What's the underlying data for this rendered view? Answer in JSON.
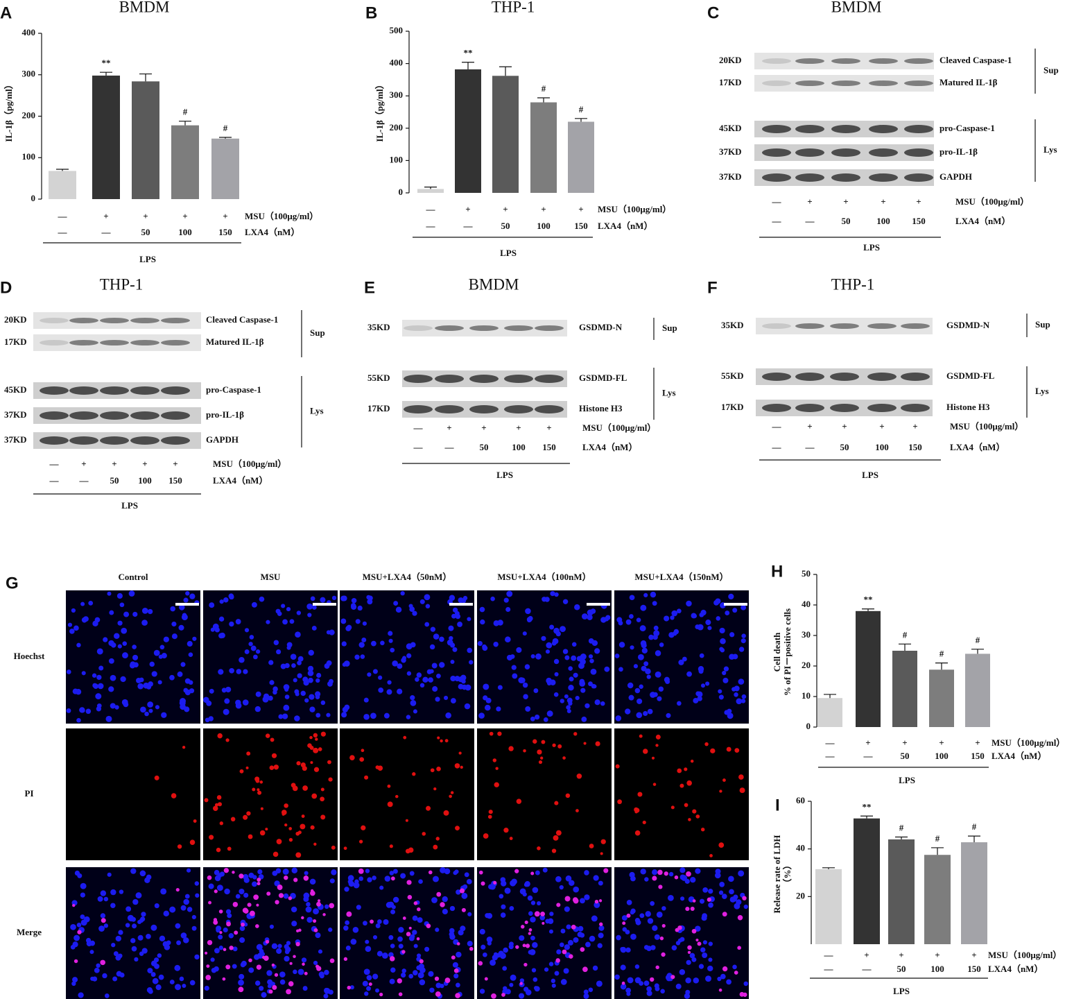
{
  "chart_data": [
    {
      "type": "bar",
      "panel": "A",
      "title": "BMDM",
      "y_label": [
        "IL-1β（pg/ml）"
      ],
      "values": [
        68,
        298,
        284,
        178,
        146
      ],
      "errors": [
        4,
        8,
        18,
        10,
        3
      ],
      "markers": [
        null,
        "**",
        null,
        "#",
        "#"
      ],
      "colors": [
        "#d3d3d3",
        "#333333",
        "#5a5a5a",
        "#7d7d7d",
        "#a3a3a8"
      ],
      "ylim": [
        0,
        400
      ],
      "yticks": [
        0,
        100,
        200,
        300,
        400
      ],
      "conditions": [
        {
          "label": "MSU（100μg/ml）",
          "values": [
            "—",
            "+",
            "+",
            "+",
            "+"
          ]
        },
        {
          "label": "LXA4（nM）",
          "values": [
            "—",
            "—",
            "50",
            "100",
            "150"
          ]
        }
      ],
      "group_label": "LPS"
    },
    {
      "type": "bar",
      "panel": "B",
      "title": "THP-1",
      "y_label": [
        "IL-1β（pg/ml）"
      ],
      "values": [
        12,
        382,
        362,
        280,
        220
      ],
      "errors": [
        6,
        22,
        28,
        14,
        10
      ],
      "markers": [
        null,
        "**",
        null,
        "#",
        "#"
      ],
      "colors": [
        "#d3d3d3",
        "#333333",
        "#5a5a5a",
        "#7d7d7d",
        "#a3a3a8"
      ],
      "ylim": [
        0,
        500
      ],
      "yticks": [
        0,
        100,
        200,
        300,
        400,
        500
      ],
      "conditions": [
        {
          "label": "MSU（100μg/ml）",
          "values": [
            "—",
            "+",
            "+",
            "+",
            "+"
          ]
        },
        {
          "label": "LXA4（nM）",
          "values": [
            "—",
            "—",
            "50",
            "100",
            "150"
          ]
        }
      ],
      "group_label": "LPS"
    },
    {
      "type": "bar",
      "panel": "H",
      "y_label": [
        "Cell death",
        "% of PI－positive cells"
      ],
      "values": [
        9.5,
        38,
        25,
        18.8,
        24
      ],
      "errors": [
        1.2,
        0.7,
        2.2,
        2.2,
        1.5
      ],
      "markers": [
        null,
        "**",
        "#",
        "#",
        "#"
      ],
      "colors": [
        "#d3d3d3",
        "#333333",
        "#5a5a5a",
        "#7d7d7d",
        "#a3a3a8"
      ],
      "ylim": [
        0,
        50
      ],
      "yticks": [
        0,
        10,
        20,
        30,
        40,
        50
      ],
      "conditions": [
        {
          "label": "MSU（100μg/ml）",
          "values": [
            "—",
            "+",
            "+",
            "+",
            "+"
          ]
        },
        {
          "label": "LXA4（nM）",
          "values": [
            "—",
            "—",
            "50",
            "100",
            "150"
          ]
        }
      ],
      "group_label": "LPS"
    },
    {
      "type": "bar",
      "panel": "I",
      "y_label": [
        "Release rate of LDH",
        "（%）"
      ],
      "values": [
        31.5,
        52.8,
        44,
        37.5,
        42.8
      ],
      "errors": [
        0.6,
        1,
        1,
        3,
        2.6
      ],
      "markers": [
        null,
        "**",
        "#",
        "#",
        "#"
      ],
      "colors": [
        "#d3d3d3",
        "#333333",
        "#5a5a5a",
        "#7d7d7d",
        "#a3a3a8"
      ],
      "ylim": [
        0,
        60
      ],
      "yticks": [
        20,
        40,
        60
      ],
      "conditions": [
        {
          "label": "MSU（100μg/ml）",
          "values": [
            "—",
            "+",
            "+",
            "+",
            "+"
          ]
        },
        {
          "label": "LXA4（nM）",
          "values": [
            "—",
            "—",
            "50",
            "100",
            "150"
          ]
        }
      ],
      "group_label": "LPS"
    }
  ],
  "blots": [
    {
      "panel": "C",
      "title": "BMDM",
      "groups": [
        {
          "label": "Sup",
          "bands": [
            {
              "size": "20KD",
              "label": "Cleaved Caspase-1"
            },
            {
              "size": "17KD",
              "label": "Matured IL-1β"
            }
          ]
        },
        {
          "label": "Lys",
          "bands": [
            {
              "size": "45KD",
              "label": "pro-Caspase-1"
            },
            {
              "size": "37KD",
              "label": "pro-IL-1β"
            },
            {
              "size": "37KD",
              "label": "GAPDH"
            }
          ]
        }
      ],
      "conditions": [
        {
          "label": "MSU（100μg/ml）",
          "values": [
            "—",
            "+",
            "+",
            "+",
            "+"
          ]
        },
        {
          "label": "LXA4（nM）",
          "values": [
            "—",
            "—",
            "50",
            "100",
            "150"
          ]
        }
      ],
      "group_label": "LPS"
    },
    {
      "panel": "D",
      "title": "THP-1",
      "groups": [
        {
          "label": "Sup",
          "bands": [
            {
              "size": "20KD",
              "label": "Cleaved Caspase-1"
            },
            {
              "size": "17KD",
              "label": "Matured IL-1β"
            }
          ]
        },
        {
          "label": "Lys",
          "bands": [
            {
              "size": "45KD",
              "label": "pro-Caspase-1"
            },
            {
              "size": "37KD",
              "label": "pro-IL-1β"
            },
            {
              "size": "37KD",
              "label": "GAPDH"
            }
          ]
        }
      ],
      "conditions": [
        {
          "label": "MSU（100μg/ml）",
          "values": [
            "—",
            "+",
            "+",
            "+",
            "+"
          ]
        },
        {
          "label": "LXA4（nM）",
          "values": [
            "—",
            "—",
            "50",
            "100",
            "150"
          ]
        }
      ],
      "group_label": "LPS"
    },
    {
      "panel": "E",
      "title": "BMDM",
      "groups": [
        {
          "label": "Sup",
          "bands": [
            {
              "size": "35KD",
              "label": "GSDMD-N"
            }
          ]
        },
        {
          "label": "Lys",
          "bands": [
            {
              "size": "55KD",
              "label": "GSDMD-FL"
            },
            {
              "size": "17KD",
              "label": "Histone H3"
            }
          ]
        }
      ],
      "conditions": [
        {
          "label": "MSU（100μg/ml）",
          "values": [
            "—",
            "+",
            "+",
            "+",
            "+"
          ]
        },
        {
          "label": "LXA4（nM）",
          "values": [
            "—",
            "—",
            "50",
            "100",
            "150"
          ]
        }
      ],
      "group_label": "LPS"
    },
    {
      "panel": "F",
      "title": "THP-1",
      "groups": [
        {
          "label": "Sup",
          "bands": [
            {
              "size": "35KD",
              "label": "GSDMD-N"
            }
          ]
        },
        {
          "label": "Lys",
          "bands": [
            {
              "size": "55KD",
              "label": "GSDMD-FL"
            },
            {
              "size": "17KD",
              "label": "Histone H3"
            }
          ]
        }
      ],
      "conditions": [
        {
          "label": "MSU（100μg/ml）",
          "values": [
            "—",
            "+",
            "+",
            "+",
            "+"
          ]
        },
        {
          "label": "LXA4（nM）",
          "values": [
            "—",
            "—",
            "50",
            "100",
            "150"
          ]
        }
      ],
      "group_label": "LPS"
    }
  ],
  "micrographs": {
    "panel": "G",
    "columns": [
      "Control",
      "MSU",
      "MSU+LXA4（50nM）",
      "MSU+LXA4（100nM）",
      "MSU+LXA4（150nM）"
    ],
    "rows": [
      "Hoechst",
      "PI",
      "Merge"
    ]
  }
}
